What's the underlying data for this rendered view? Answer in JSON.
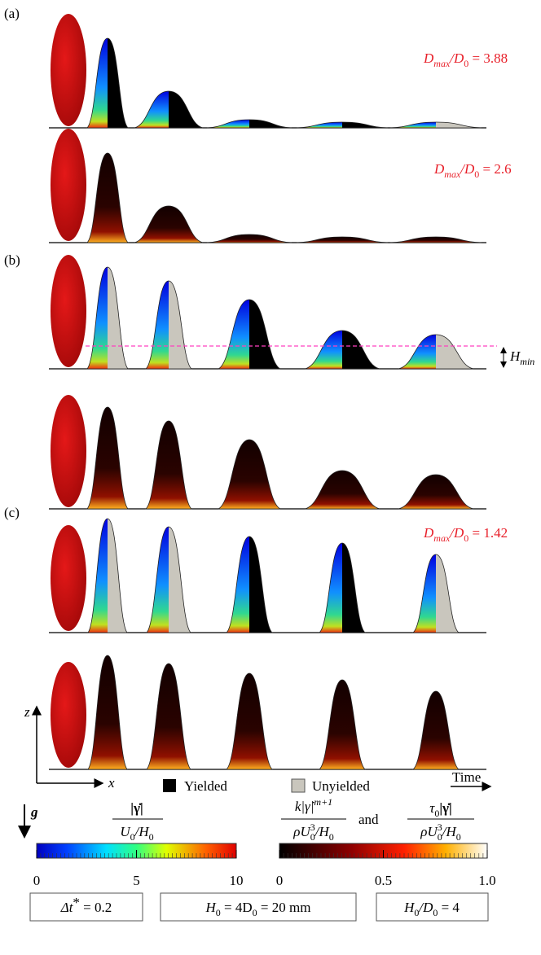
{
  "panels": [
    {
      "label": "(a)",
      "dmax": [
        "D",
        "max",
        "/D",
        "0",
        " = 3.88"
      ]
    },
    {
      "label": "(b)",
      "dmax": [
        "D",
        "max",
        "/D",
        "0",
        " = 2.6"
      ]
    },
    {
      "label": "(c)",
      "dmax": [
        "D",
        "max",
        "/D",
        "0",
        " = 1.42"
      ]
    }
  ],
  "hmin": [
    "H",
    "min"
  ],
  "axes": {
    "z": "z",
    "x": "x",
    "time": "Time",
    "g": "g"
  },
  "legend": {
    "yielded": "Yielded",
    "unyielded": "Unyielded"
  },
  "colorbars": [
    {
      "numerator": [
        "|γ̇|"
      ],
      "denominator": [
        "U",
        "0",
        "/H",
        "0"
      ],
      "lim": [
        0,
        10
      ],
      "ticks": [
        0,
        5,
        10
      ]
    },
    {
      "numerator": [
        "k|γ̇|",
        "m+1"
      ],
      "denominator": [
        "ρU",
        "0",
        "3",
        "/H",
        "0"
      ],
      "and": "and",
      "numerator2": [
        "τ",
        "0",
        "|γ̇|"
      ],
      "denominator2": [
        "ρU",
        "0",
        "3",
        "/H",
        "0"
      ],
      "lim": [
        0,
        1
      ],
      "ticks": [
        0,
        0.5,
        {
          "value": 1,
          "label": "1.0"
        }
      ]
    }
  ],
  "boxes": [
    [
      "Δt",
      "*",
      " = 0.2"
    ],
    [
      "H",
      "0",
      " = 4D",
      "0",
      " = 20 mm"
    ],
    [
      "H",
      "0",
      "/D",
      "0",
      " = 4"
    ]
  ]
}
